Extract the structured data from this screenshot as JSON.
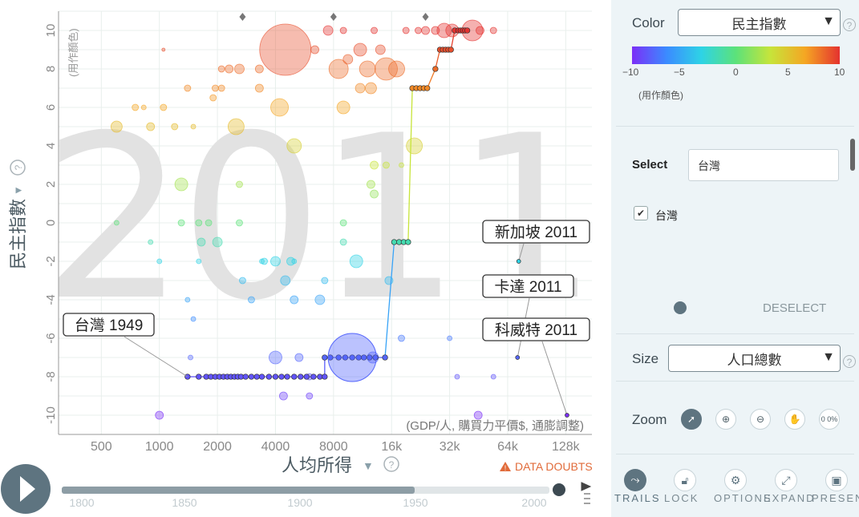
{
  "chart_data": {
    "type": "scatter",
    "year_watermark": "2011",
    "xlabel": "人均所得",
    "x_unit_note": "(GDP/人, 購買力平價$, 通膨調整)",
    "x_scale": "log",
    "x_ticks": [
      500,
      1000,
      2000,
      4000,
      8000,
      16000,
      32000,
      64000,
      128000
    ],
    "x_tick_labels": [
      "500",
      "1000",
      "2000",
      "4000",
      "8000",
      "16k",
      "32k",
      "64k",
      "128k"
    ],
    "xlim": [
      300,
      175000
    ],
    "ylabel": "民主指數",
    "y_note": "(用作顏色)",
    "ylim": [
      -11,
      11
    ],
    "y_ticks": [
      -10,
      -8,
      -6,
      -4,
      -2,
      0,
      2,
      4,
      6,
      8,
      10
    ],
    "y_tick_labels": [
      "-10",
      "-8",
      "-6",
      "-4",
      "-2",
      "0",
      "2",
      "4",
      "6",
      "8",
      "10"
    ],
    "grid": true,
    "data_doubts": "DATA DOUBTS",
    "annotations": [
      {
        "label": "台灣 1949",
        "x": 1400,
        "y": -8
      },
      {
        "label": "新加坡 2011",
        "x": 73000,
        "y": -2
      },
      {
        "label": "卡達 2011",
        "x": 72000,
        "y": -7
      },
      {
        "label": "科威特 2011",
        "x": 130000,
        "y": -10
      }
    ],
    "trail": {
      "name": "台灣",
      "points": [
        [
          1400,
          -8
        ],
        [
          1600,
          -8
        ],
        [
          1750,
          -8
        ],
        [
          1850,
          -8
        ],
        [
          1950,
          -8
        ],
        [
          2050,
          -8
        ],
        [
          2150,
          -8
        ],
        [
          2250,
          -8
        ],
        [
          2350,
          -8
        ],
        [
          2450,
          -8
        ],
        [
          2550,
          -8
        ],
        [
          2650,
          -8
        ],
        [
          2800,
          -8
        ],
        [
          3000,
          -8
        ],
        [
          3200,
          -8
        ],
        [
          3400,
          -8
        ],
        [
          3700,
          -8
        ],
        [
          4000,
          -8
        ],
        [
          4300,
          -8
        ],
        [
          4600,
          -8
        ],
        [
          5000,
          -8
        ],
        [
          5400,
          -8
        ],
        [
          5800,
          -8
        ],
        [
          6300,
          -8
        ],
        [
          6800,
          -8
        ],
        [
          7200,
          -8
        ],
        [
          7200,
          -7
        ],
        [
          7700,
          -7
        ],
        [
          8500,
          -7
        ],
        [
          9200,
          -7
        ],
        [
          10000,
          -7
        ],
        [
          10800,
          -7
        ],
        [
          11500,
          -7
        ],
        [
          12300,
          -7
        ],
        [
          13200,
          -7
        ],
        [
          14800,
          -7
        ],
        [
          16500,
          -1
        ],
        [
          17500,
          -1
        ],
        [
          18500,
          -1
        ],
        [
          19500,
          -1
        ],
        [
          20500,
          7
        ],
        [
          21500,
          7
        ],
        [
          22500,
          7
        ],
        [
          23500,
          7
        ],
        [
          24500,
          7
        ],
        [
          27000,
          8
        ],
        [
          28500,
          9
        ],
        [
          29500,
          9
        ],
        [
          30500,
          9
        ],
        [
          31500,
          9
        ],
        [
          32500,
          9
        ],
        [
          34000,
          10
        ],
        [
          35500,
          10
        ],
        [
          36500,
          10
        ],
        [
          37500,
          10
        ],
        [
          38500,
          10
        ],
        [
          39500,
          10
        ]
      ]
    },
    "bubbles": [
      [
        4500,
        9,
        32
      ],
      [
        7500,
        10,
        6
      ],
      [
        8500,
        8,
        12
      ],
      [
        12000,
        8,
        10
      ],
      [
        15000,
        8,
        14
      ],
      [
        17000,
        8,
        10
      ],
      [
        14000,
        9,
        6
      ],
      [
        11000,
        9,
        8
      ],
      [
        12500,
        7,
        7
      ],
      [
        11000,
        7,
        6
      ],
      [
        9500,
        8.5,
        6
      ],
      [
        30000,
        10,
        9
      ],
      [
        33000,
        10,
        8
      ],
      [
        42000,
        10,
        13
      ],
      [
        46000,
        10,
        5
      ],
      [
        24000,
        10,
        5
      ],
      [
        27000,
        10,
        5
      ],
      [
        19000,
        10,
        4
      ],
      [
        22000,
        10,
        4
      ],
      [
        9000,
        10,
        4
      ],
      [
        13000,
        10,
        4
      ],
      [
        54000,
        10,
        4
      ],
      [
        9000,
        6,
        8
      ],
      [
        4200,
        6,
        11
      ],
      [
        2500,
        5,
        10
      ],
      [
        5000,
        4,
        9
      ],
      [
        21000,
        4,
        10
      ],
      [
        3300,
        7,
        5
      ],
      [
        3300,
        8,
        5
      ],
      [
        2600,
        8,
        6
      ],
      [
        2300,
        8,
        5
      ],
      [
        2100,
        8,
        4
      ],
      [
        1950,
        7,
        4
      ],
      [
        1400,
        7,
        4
      ],
      [
        1900,
        6.5,
        4
      ],
      [
        2100,
        7,
        4
      ],
      [
        1050,
        6,
        4
      ],
      [
        750,
        6,
        4
      ],
      [
        830,
        6,
        3
      ],
      [
        1200,
        5,
        4
      ],
      [
        1500,
        5,
        3
      ],
      [
        600,
        5,
        7
      ],
      [
        900,
        5,
        5
      ],
      [
        5000,
        -2,
        3
      ],
      [
        3500,
        -2,
        4
      ],
      [
        1300,
        0,
        4
      ],
      [
        1800,
        0,
        4
      ],
      [
        2000,
        -1,
        6
      ],
      [
        2600,
        0,
        4
      ],
      [
        4000,
        -2,
        6
      ],
      [
        4800,
        -2,
        5
      ],
      [
        10500,
        -2,
        8
      ],
      [
        9000,
        -1,
        4
      ],
      [
        15500,
        -3,
        5
      ],
      [
        15000,
        3,
        4
      ],
      [
        18000,
        3,
        3
      ],
      [
        9000,
        0,
        4
      ],
      [
        12500,
        2,
        5
      ],
      [
        13000,
        3,
        5
      ],
      [
        13000,
        1.5,
        5
      ],
      [
        1300,
        2,
        8
      ],
      [
        2600,
        2,
        4
      ],
      [
        1600,
        0,
        4
      ],
      [
        1650,
        -1,
        5
      ],
      [
        600,
        0,
        3
      ],
      [
        900,
        -1,
        3
      ],
      [
        1000,
        -2,
        3
      ],
      [
        1600,
        -2,
        3
      ],
      [
        3400,
        -2,
        3
      ],
      [
        5000,
        -4,
        5
      ],
      [
        6800,
        -4,
        6
      ],
      [
        7200,
        -3,
        4
      ],
      [
        3000,
        -4,
        4
      ],
      [
        1400,
        -4,
        3
      ],
      [
        4500,
        -3,
        6
      ],
      [
        4000,
        -7,
        8
      ],
      [
        4400,
        -9,
        5
      ],
      [
        1450,
        -7,
        3
      ],
      [
        5300,
        -7,
        5
      ],
      [
        6000,
        -8,
        4
      ],
      [
        6000,
        -9,
        4
      ],
      [
        1000,
        -10,
        5
      ],
      [
        12800,
        -7,
        7
      ],
      [
        18000,
        -6,
        4
      ],
      [
        32000,
        -6,
        3
      ],
      [
        35000,
        -8,
        3
      ],
      [
        45000,
        -10,
        5
      ],
      [
        54000,
        -8,
        3
      ],
      [
        1500,
        -5,
        3
      ],
      [
        6400,
        9,
        5
      ],
      [
        1050,
        9,
        2
      ],
      [
        2700,
        -3,
        4
      ]
    ]
  }
}
